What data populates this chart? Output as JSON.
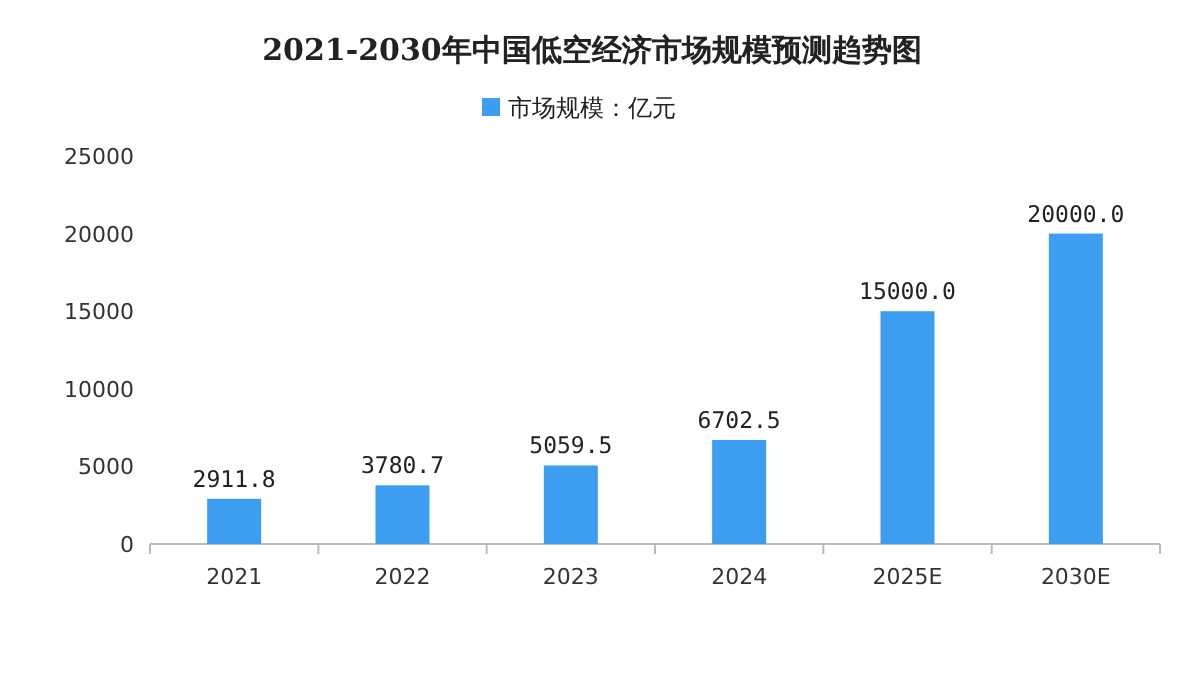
{
  "chart_data": {
    "type": "bar",
    "title": "2021-2030年中国低空经济市场规模预测趋势图",
    "categories": [
      "2021",
      "2022",
      "2023",
      "2024",
      "2025E",
      "2030E"
    ],
    "series": [
      {
        "name": "市场规模：亿元",
        "color": "#3d9df0",
        "values": [
          2911.8,
          3780.7,
          5059.5,
          6702.5,
          15000,
          20000
        ],
        "value_labels": [
          "2911.8",
          "3780.7",
          "5059.5",
          "6702.5",
          "15000.0",
          "20000.0"
        ]
      }
    ],
    "ylim": [
      0,
      25000
    ],
    "yticks": [
      0,
      5000,
      10000,
      15000,
      20000,
      25000
    ],
    "legend": "top",
    "grid": false
  }
}
